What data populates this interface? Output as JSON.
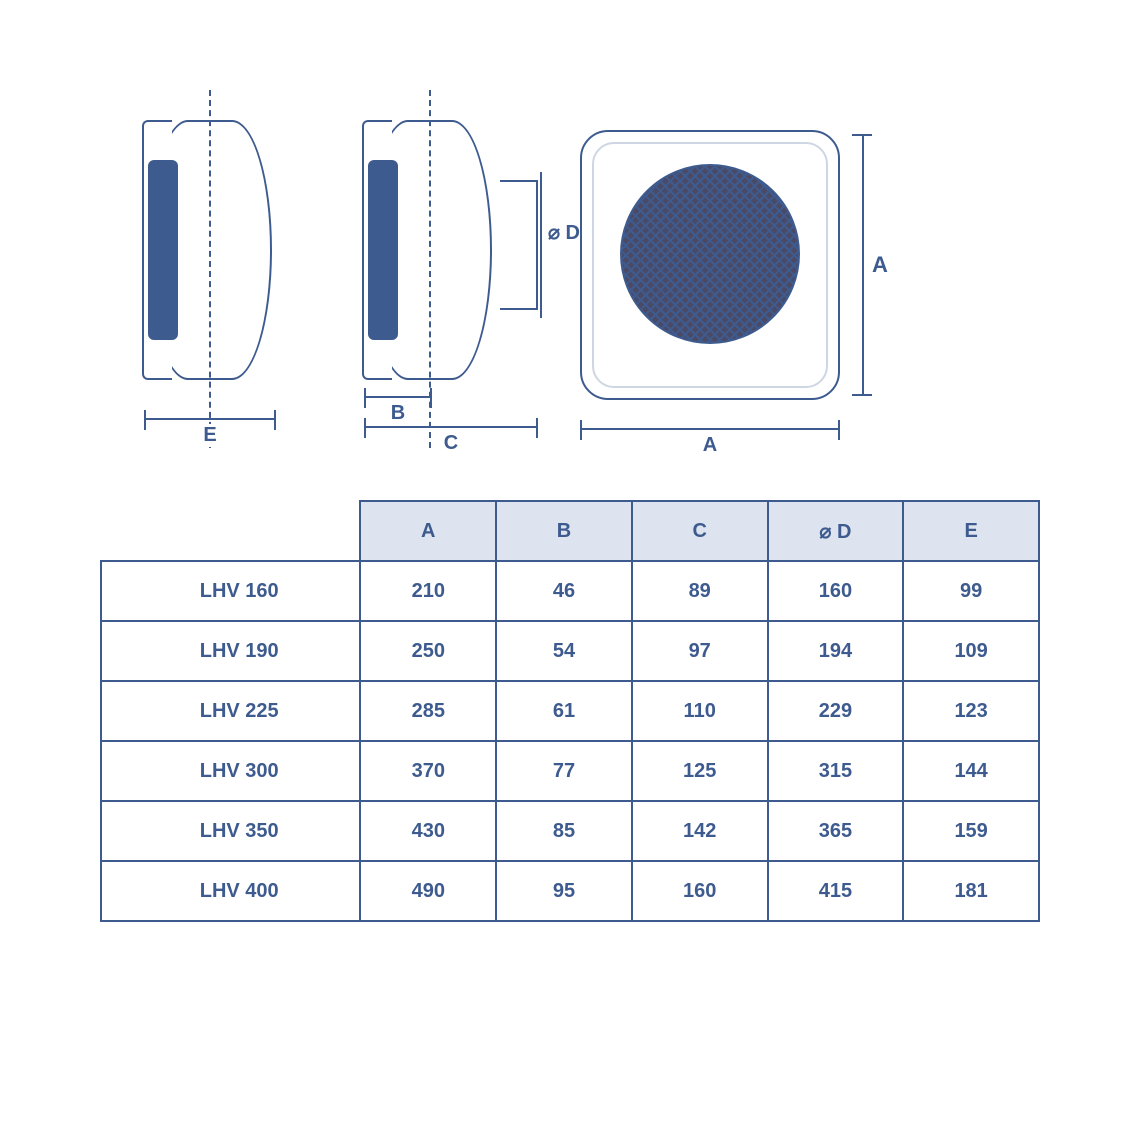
{
  "colors": {
    "line": "#3e5b8f",
    "header_bg": "#dde4ef",
    "page_bg": "#ffffff"
  },
  "diagram": {
    "labels": {
      "E": "E",
      "B": "B",
      "C": "C",
      "D": "⌀ D",
      "A_v": "A",
      "A_h": "A"
    }
  },
  "table": {
    "columns": [
      "",
      "A",
      "B",
      "C",
      "⌀ D",
      "E"
    ],
    "rows": [
      {
        "model": "LHV 160",
        "A": "210",
        "B": "46",
        "C": "89",
        "D": "160",
        "E": "99"
      },
      {
        "model": "LHV 190",
        "A": "250",
        "B": "54",
        "C": "97",
        "D": "194",
        "E": "109"
      },
      {
        "model": "LHV 225",
        "A": "285",
        "B": "61",
        "C": "110",
        "D": "229",
        "E": "123"
      },
      {
        "model": "LHV 300",
        "A": "370",
        "B": "77",
        "C": "125",
        "D": "315",
        "E": "144"
      },
      {
        "model": "LHV 350",
        "A": "430",
        "B": "85",
        "C": "142",
        "D": "365",
        "E": "159"
      },
      {
        "model": "LHV 400",
        "A": "490",
        "B": "95",
        "C": "160",
        "D": "415",
        "E": "181"
      }
    ]
  }
}
